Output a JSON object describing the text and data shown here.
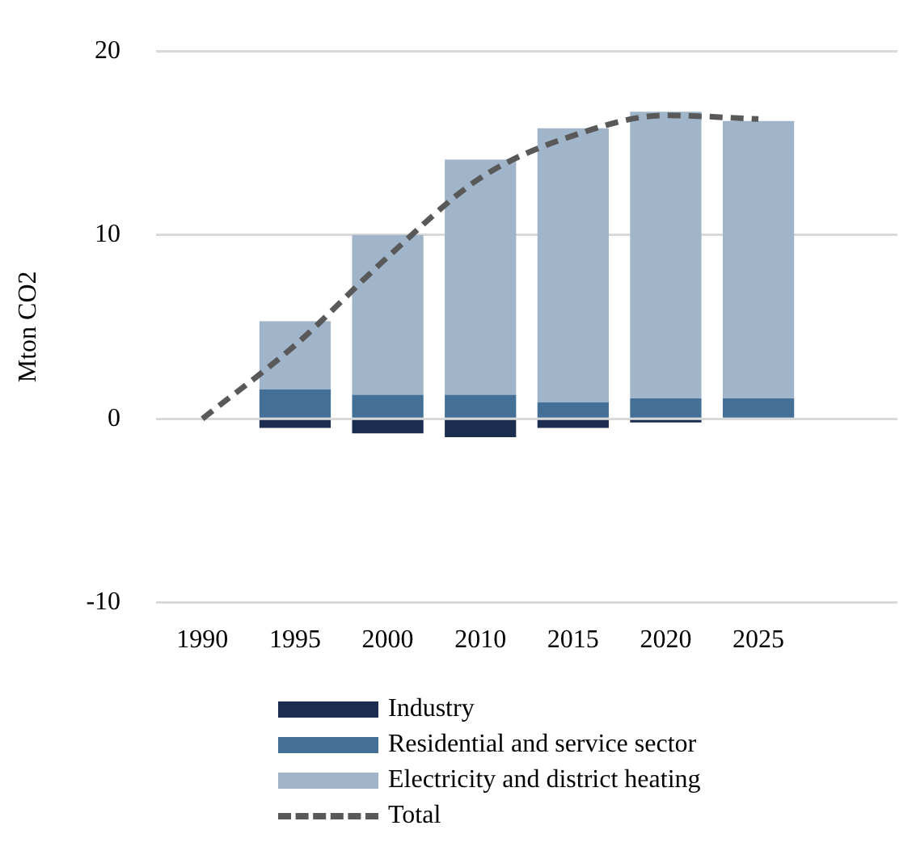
{
  "chart_data": {
    "type": "bar",
    "stacked": true,
    "ylabel": "Mton CO2",
    "categories": [
      "1990",
      "1995",
      "2000",
      "2010",
      "2015",
      "2020",
      "2025",
      null
    ],
    "series": [
      {
        "name": "Industry",
        "color": "#1c2e4f",
        "values": [
          null,
          -0.5,
          -0.8,
          -1.0,
          -0.5,
          -0.2,
          null,
          null
        ]
      },
      {
        "name": "Residential and service sector",
        "color": "#446f97",
        "values": [
          null,
          1.6,
          1.3,
          1.3,
          0.9,
          1.1,
          1.1,
          null
        ]
      },
      {
        "name": "Electricity and district heating",
        "color": "#a0b5c9",
        "values": [
          null,
          3.7,
          8.7,
          12.8,
          14.9,
          15.6,
          15.1,
          null
        ]
      },
      {
        "name": "Total",
        "type": "line",
        "color": "#595959",
        "line_style": "dashed",
        "marker": "none",
        "values": [
          0,
          4.0,
          8.8,
          13.1,
          15.4,
          16.5,
          16.3,
          null
        ]
      }
    ],
    "ylim": [
      -10,
      20
    ],
    "yticks": [
      -10,
      0,
      10,
      20
    ],
    "grid": "y",
    "legend": "bottom"
  }
}
